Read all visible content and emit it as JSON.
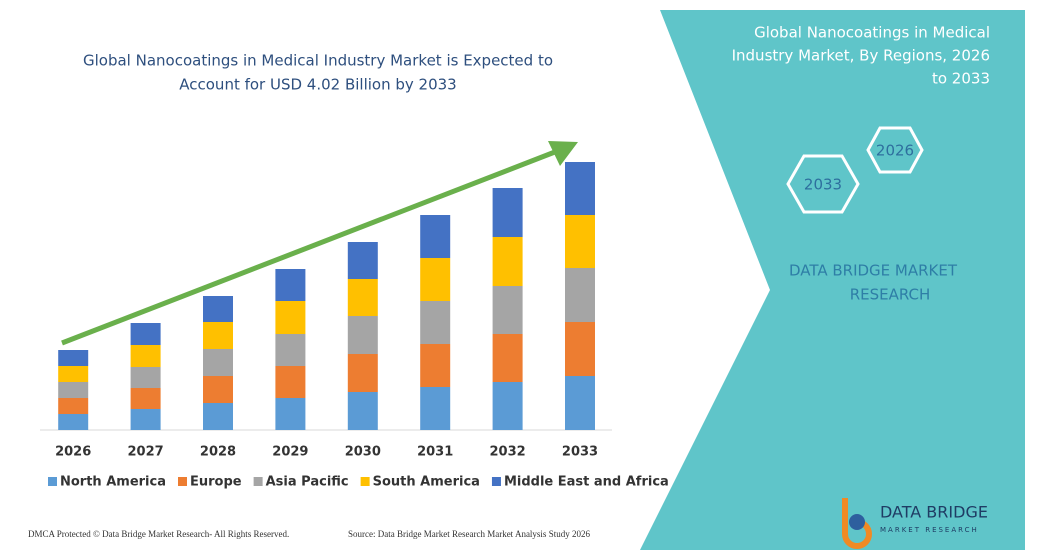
{
  "chart_data": {
    "type": "stacked-bar",
    "title": [
      "Global Nanocoatings in Medical Industry Market is Expected to",
      "Account for USD 4.02 Billion by 2033"
    ],
    "categories": [
      "2026",
      "2027",
      "2028",
      "2029",
      "2030",
      "2031",
      "2032",
      "2033"
    ],
    "series": [
      {
        "name": "North America",
        "color": "#5b9bd5",
        "values": [
          16,
          21,
          27,
          32,
          38,
          43,
          48,
          54
        ]
      },
      {
        "name": "Europe",
        "color": "#ed7d31",
        "values": [
          16,
          21,
          27,
          32,
          38,
          43,
          48,
          54
        ]
      },
      {
        "name": "Asia Pacific",
        "color": "#a5a5a5",
        "values": [
          16,
          21,
          27,
          32,
          38,
          43,
          48,
          54
        ]
      },
      {
        "name": "South America",
        "color": "#ffc000",
        "values": [
          16,
          22,
          27,
          33,
          37,
          43,
          49,
          53
        ]
      },
      {
        "name": "Middle East and Africa",
        "color": "#4472c4",
        "values": [
          16,
          22,
          26,
          32,
          37,
          43,
          49,
          53
        ]
      }
    ],
    "ylim": [
      0,
      280
    ],
    "legend": "bottom"
  },
  "panel": {
    "title": [
      "Global Nanocoatings in Medical",
      "Industry Market, By Regions, 2026",
      "to 2033"
    ],
    "hex_front": "2033",
    "hex_back": "2026",
    "brand": [
      "DATA BRIDGE MARKET",
      "RESEARCH"
    ]
  },
  "logo": {
    "name": "DATA BRIDGE",
    "sub": "MARKET RESEARCH"
  },
  "footer": {
    "left": "DMCA Protected © Data Bridge Market Research- All Rights Reserved.",
    "right": "Source: Data Bridge Market Research Market Analysis Study 2026"
  }
}
